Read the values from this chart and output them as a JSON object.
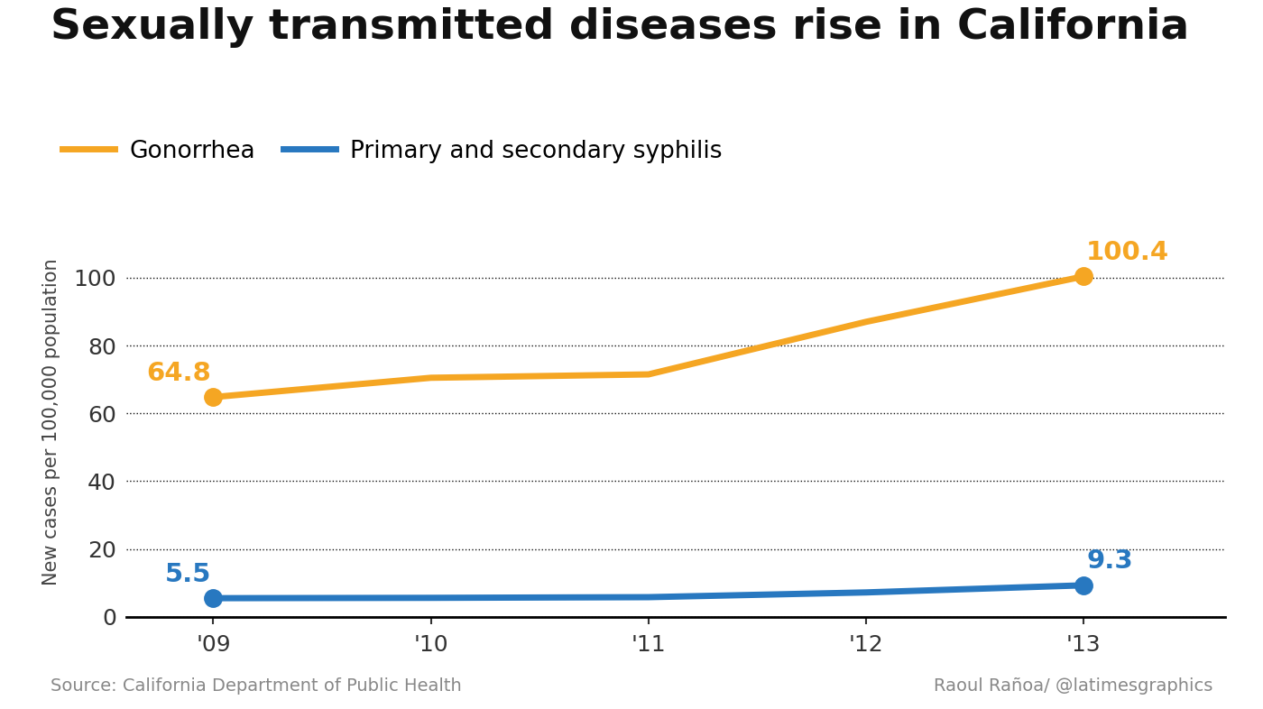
{
  "title": "Sexually transmitted diseases rise in California",
  "ylabel": "New cases per 100,000 population",
  "source_left": "Source: California Department of Public Health",
  "source_right": "Raoul Rañoa/ @latimesgraphics",
  "years": [
    2009,
    2010,
    2011,
    2012,
    2013
  ],
  "x_labels": [
    "'09",
    "'10",
    "'11",
    "'12",
    "'13"
  ],
  "gonorrhea": [
    64.8,
    70.5,
    71.5,
    87.0,
    100.4
  ],
  "syphilis": [
    5.5,
    5.6,
    5.8,
    7.2,
    9.3
  ],
  "gonorrhea_color": "#F5A623",
  "syphilis_color": "#2878C0",
  "gonorrhea_label": "Gonorrhea",
  "syphilis_label": "Primary and secondary syphilis",
  "ylim": [
    0,
    115
  ],
  "yticks": [
    0,
    20,
    40,
    60,
    80,
    100
  ],
  "title_fontsize": 34,
  "legend_fontsize": 19,
  "label_fontsize": 15,
  "annotation_fontsize": 21,
  "tick_fontsize": 18,
  "source_fontsize": 14,
  "line_width": 5,
  "marker_size": 14,
  "background_color": "#FFFFFF",
  "grid_color": "#111111",
  "axis_color": "#000000"
}
